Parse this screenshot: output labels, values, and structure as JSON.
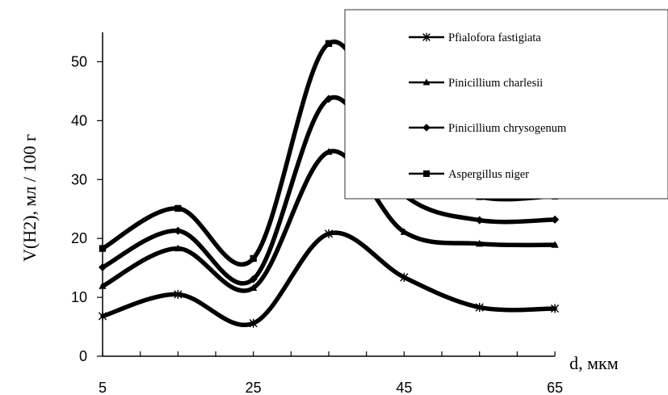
{
  "chart_data": {
    "type": "line",
    "xlabel": "d, мкм",
    "ylabel": "V(H2), мл / 100 г",
    "xlim": [
      5,
      65
    ],
    "ylim": [
      0,
      55
    ],
    "x_ticks": [
      5,
      25,
      45,
      65
    ],
    "y_ticks": [
      0,
      10,
      20,
      30,
      40,
      50
    ],
    "grid": false,
    "smooth": true,
    "legend_position": "top-right",
    "x": [
      5,
      15,
      25,
      35,
      45,
      55,
      65
    ],
    "series": [
      {
        "name": "Pfialofora fastigiata",
        "marker": "star",
        "values": [
          6.8,
          10.5,
          5.6,
          20.8,
          13.4,
          8.3,
          8.1
        ]
      },
      {
        "name": "Pinicillium charlesii",
        "marker": "triangle",
        "values": [
          11.9,
          18.3,
          11.6,
          34.7,
          21.1,
          19.1,
          18.9
        ]
      },
      {
        "name": "Pinicillium chrysogenum",
        "marker": "diamond",
        "values": [
          15.1,
          21.3,
          13.1,
          43.7,
          27.4,
          23.1,
          23.2
        ]
      },
      {
        "name": "Aspergillus niger",
        "marker": "square",
        "values": [
          18.3,
          25.1,
          16.6,
          53.1,
          33.5,
          27.1,
          27.2
        ]
      }
    ]
  }
}
